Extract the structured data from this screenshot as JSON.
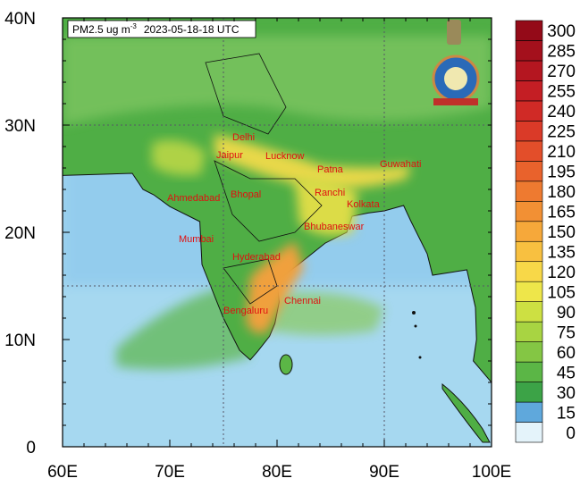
{
  "map": {
    "title": {
      "text": "PM2.5 ug m",
      "sup": "-3",
      "time": "2023-05-18-18 UTC"
    },
    "lon_range": [
      60,
      100
    ],
    "lat_range": [
      0,
      40
    ],
    "lon_ticks": [
      {
        "value": 60,
        "label": "60E"
      },
      {
        "value": 70,
        "label": "70E"
      },
      {
        "value": 80,
        "label": "80E"
      },
      {
        "value": 90,
        "label": "90E"
      },
      {
        "value": 100,
        "label": "100E"
      }
    ],
    "lat_ticks": [
      0,
      {
        "value": 10,
        "label": "10N"
      },
      {
        "value": 20,
        "label": "20N"
      },
      {
        "value": 30,
        "label": "30N"
      },
      {
        "value": 40,
        "label": "40N"
      }
    ],
    "cities": [
      "Delhi",
      "Jaipur",
      "Lucknow",
      "Patna",
      "Guwahati",
      "Ahmedabad",
      "Bhopal",
      "Ranchi",
      "Kolkata",
      "Mumbai",
      "Bhubaneswar",
      "Hyderabad",
      "Chennai",
      "Bengaluru"
    ]
  },
  "colorbar": {
    "levels": [
      0,
      15,
      30,
      45,
      60,
      75,
      90,
      105,
      120,
      135,
      150,
      165,
      180,
      195,
      210,
      225,
      240,
      255,
      270,
      285,
      300
    ],
    "colors": [
      "#e4f3fa",
      "#5fa8dc",
      "#3ca347",
      "#5bb646",
      "#84c644",
      "#a8d442",
      "#cde042",
      "#eee64a",
      "#f8d848",
      "#f8c040",
      "#f6a83a",
      "#f29034",
      "#ee7a30",
      "#e9622c",
      "#e34e2a",
      "#da3a28",
      "#d02a26",
      "#c41e24",
      "#b41620",
      "#a4101c",
      "#940a18"
    ]
  }
}
